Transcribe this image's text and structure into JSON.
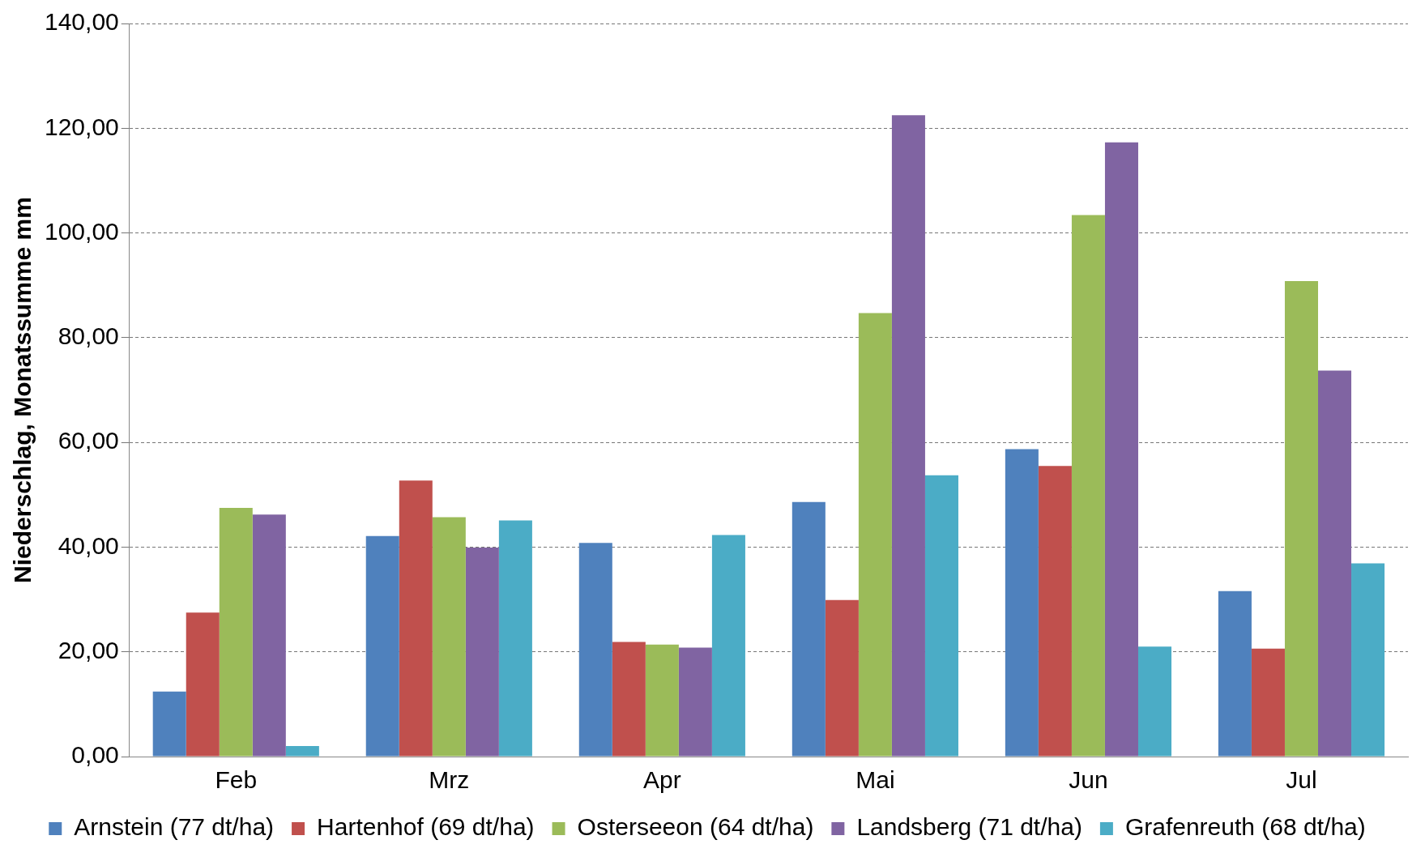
{
  "chart_data": {
    "type": "bar",
    "ylabel": "Niederschlag, Monatssumme mm",
    "categories": [
      "Feb",
      "Mrz",
      "Apr",
      "Mai",
      "Jun",
      "Jul"
    ],
    "series": [
      {
        "name": "Arnstein (77 dt/ha)",
        "color": "#4f81bd",
        "values": [
          12.4,
          42.1,
          40.8,
          48.6,
          58.7,
          31.6
        ]
      },
      {
        "name": "Hartenhof (69 dt/ha)",
        "color": "#c0504d",
        "values": [
          27.5,
          52.7,
          21.9,
          29.9,
          55.5,
          20.6
        ]
      },
      {
        "name": "Osterseeon (64 dt/ha)",
        "color": "#9bbb59",
        "values": [
          47.5,
          45.7,
          21.4,
          84.7,
          103.4,
          90.8
        ]
      },
      {
        "name": "Landsberg (71 dt/ha)",
        "color": "#8064a2",
        "values": [
          46.2,
          39.9,
          20.8,
          122.5,
          117.3,
          73.7
        ]
      },
      {
        "name": "Grafenreuth (68 dt/ha)",
        "color": "#4bacc6",
        "values": [
          2.0,
          45.1,
          42.3,
          53.7,
          21.0,
          36.9
        ]
      }
    ],
    "ylim": [
      0,
      140
    ],
    "yticks": [
      {
        "value": 0,
        "label": "0,00"
      },
      {
        "value": 20,
        "label": "20,00"
      },
      {
        "value": 40,
        "label": "40,00"
      },
      {
        "value": 60,
        "label": "60,00"
      },
      {
        "value": 80,
        "label": "80,00"
      },
      {
        "value": 100,
        "label": "100,00"
      },
      {
        "value": 120,
        "label": "120,00"
      },
      {
        "value": 140,
        "label": "140,00"
      }
    ],
    "grid": "y",
    "legend": "bottom"
  }
}
